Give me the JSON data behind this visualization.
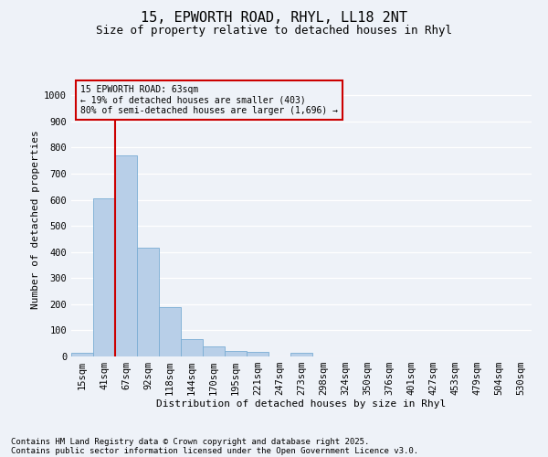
{
  "title1": "15, EPWORTH ROAD, RHYL, LL18 2NT",
  "title2": "Size of property relative to detached houses in Rhyl",
  "xlabel": "Distribution of detached houses by size in Rhyl",
  "ylabel": "Number of detached properties",
  "categories": [
    "15sqm",
    "41sqm",
    "67sqm",
    "92sqm",
    "118sqm",
    "144sqm",
    "170sqm",
    "195sqm",
    "221sqm",
    "247sqm",
    "273sqm",
    "298sqm",
    "324sqm",
    "350sqm",
    "376sqm",
    "401sqm",
    "427sqm",
    "453sqm",
    "479sqm",
    "504sqm",
    "530sqm"
  ],
  "values": [
    15,
    605,
    770,
    415,
    190,
    68,
    40,
    20,
    17,
    0,
    14,
    0,
    0,
    0,
    0,
    0,
    0,
    0,
    0,
    0,
    0
  ],
  "bar_color": "#b8cfe8",
  "bar_edge_color": "#7aadd4",
  "vline_x_idx": 1.5,
  "vline_color": "#cc0000",
  "annotation_text": "15 EPWORTH ROAD: 63sqm\n← 19% of detached houses are smaller (403)\n80% of semi-detached houses are larger (1,696) →",
  "annotation_box_color": "#cc0000",
  "ylim": [
    0,
    1050
  ],
  "yticks": [
    0,
    100,
    200,
    300,
    400,
    500,
    600,
    700,
    800,
    900,
    1000
  ],
  "footer1": "Contains HM Land Registry data © Crown copyright and database right 2025.",
  "footer2": "Contains public sector information licensed under the Open Government Licence v3.0.",
  "bg_color": "#eef2f8",
  "grid_color": "#ffffff",
  "title_fontsize": 11,
  "subtitle_fontsize": 9,
  "axis_label_fontsize": 8,
  "tick_fontsize": 7.5,
  "annotation_fontsize": 7,
  "footer_fontsize": 6.5
}
